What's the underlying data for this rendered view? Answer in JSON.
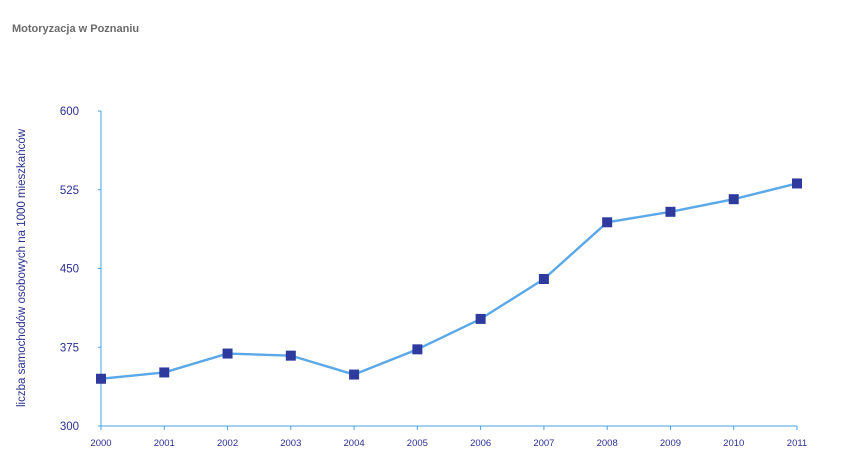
{
  "chart_data": {
    "type": "line",
    "title": "Motoryzacja w Poznaniu",
    "xlabel": "",
    "ylabel": "liczba samochodów osobowych na 1000 mieszkańców",
    "categories": [
      "2000",
      "2001",
      "2002",
      "2003",
      "2004",
      "2005",
      "2006",
      "2007",
      "2008",
      "2009",
      "2010",
      "2011"
    ],
    "series": [
      {
        "values": [
          345,
          351,
          369,
          367,
          349,
          373,
          402,
          440,
          494,
          504,
          516,
          531
        ]
      }
    ],
    "ylim": [
      300,
      600
    ],
    "yticks": [
      "300",
      "375",
      "450",
      "525",
      "600"
    ],
    "grid": false,
    "legend": "none",
    "colors": {
      "line": "#5aa8e8",
      "marker": "#2e3a9e",
      "axis": "#4aa0e4",
      "text": "#2a2f8f",
      "title": "#6b6b6b"
    }
  }
}
